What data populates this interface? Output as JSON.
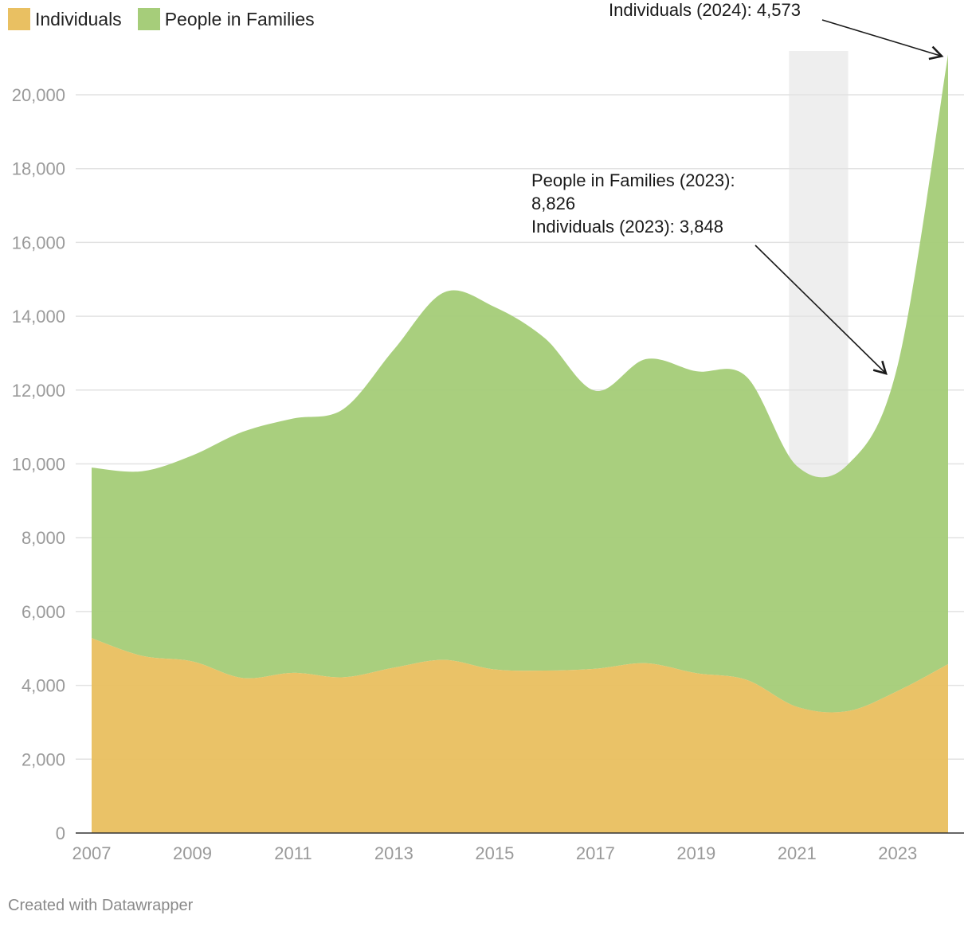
{
  "legend": {
    "individuals": "Individuals",
    "families": "People in Families"
  },
  "colors": {
    "individuals": "#e9c062",
    "families": "#a6cd7a",
    "highlight": "#eeeeee",
    "gridline": "#e2e2e2",
    "baseline": "#333333"
  },
  "footer": "Created with Datawrapper",
  "annotations": [
    {
      "lines": [
        "Individuals (2024): 4,573"
      ]
    },
    {
      "lines": [
        "People in Families (2023):",
        "8,826",
        "Individuals (2023): 3,848"
      ]
    }
  ],
  "chart_data": {
    "type": "area",
    "stacked": true,
    "x": [
      2007,
      2008,
      2009,
      2010,
      2011,
      2012,
      2013,
      2014,
      2015,
      2016,
      2017,
      2018,
      2019,
      2020,
      2021,
      2022,
      2023,
      2024
    ],
    "x_ticks": [
      "2007",
      "2009",
      "2011",
      "2013",
      "2015",
      "2017",
      "2019",
      "2021",
      "2023"
    ],
    "y_ticks": [
      "0",
      "2,000",
      "4,000",
      "6,000",
      "8,000",
      "10,000",
      "12,000",
      "14,000",
      "16,000",
      "18,000",
      "20,000"
    ],
    "ylim": [
      0,
      21000
    ],
    "series": [
      {
        "name": "Individuals",
        "values": [
          5280,
          4800,
          4650,
          4200,
          4340,
          4220,
          4480,
          4690,
          4430,
          4400,
          4450,
          4600,
          4330,
          4150,
          3420,
          3300,
          3848,
          4573
        ]
      },
      {
        "name": "People in Families",
        "values": [
          4620,
          5000,
          5580,
          6670,
          6890,
          7270,
          8620,
          9960,
          9820,
          9000,
          7530,
          8240,
          8180,
          8210,
          6520,
          6670,
          8826,
          16517
        ]
      }
    ],
    "highlight_range": [
      2021,
      2022
    ],
    "xlabel": "",
    "ylabel": "",
    "grid": true,
    "legend_position": "top-left"
  }
}
